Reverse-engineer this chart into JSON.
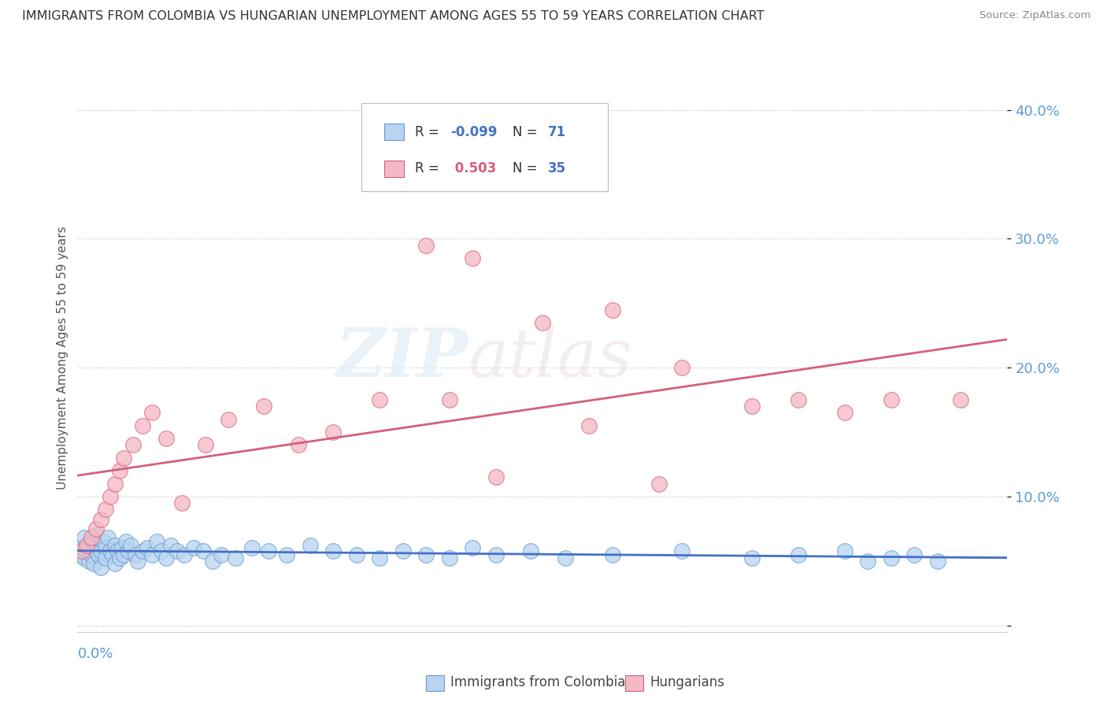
{
  "title": "IMMIGRANTS FROM COLOMBIA VS HUNGARIAN UNEMPLOYMENT AMONG AGES 55 TO 59 YEARS CORRELATION CHART",
  "source": "Source: ZipAtlas.com",
  "ylabel": "Unemployment Among Ages 55 to 59 years",
  "series": [
    {
      "label": "Immigrants from Colombia",
      "R": -0.099,
      "N": 71,
      "color": "#b8d4f0",
      "line_color": "#4472c4",
      "marker_edge": "#6699cc"
    },
    {
      "label": "Hungarians",
      "R": 0.503,
      "N": 35,
      "color": "#f4b8c4",
      "line_color": "#d4607a",
      "marker_edge": "#d4607a"
    }
  ],
  "blue_scatter_x": [
    0.001,
    0.002,
    0.003,
    0.003,
    0.004,
    0.005,
    0.005,
    0.006,
    0.006,
    0.007,
    0.007,
    0.008,
    0.008,
    0.009,
    0.009,
    0.01,
    0.01,
    0.011,
    0.012,
    0.012,
    0.013,
    0.014,
    0.015,
    0.016,
    0.016,
    0.017,
    0.018,
    0.019,
    0.02,
    0.021,
    0.022,
    0.023,
    0.025,
    0.026,
    0.028,
    0.03,
    0.032,
    0.034,
    0.036,
    0.038,
    0.04,
    0.043,
    0.046,
    0.05,
    0.054,
    0.058,
    0.062,
    0.068,
    0.075,
    0.082,
    0.09,
    0.1,
    0.11,
    0.12,
    0.13,
    0.14,
    0.15,
    0.16,
    0.17,
    0.18,
    0.195,
    0.21,
    0.23,
    0.26,
    0.29,
    0.31,
    0.33,
    0.34,
    0.35,
    0.36,
    0.37
  ],
  "blue_scatter_y": [
    0.055,
    0.06,
    0.052,
    0.068,
    0.058,
    0.062,
    0.05,
    0.065,
    0.055,
    0.06,
    0.048,
    0.058,
    0.07,
    0.055,
    0.062,
    0.058,
    0.045,
    0.065,
    0.06,
    0.052,
    0.068,
    0.058,
    0.055,
    0.062,
    0.048,
    0.058,
    0.052,
    0.06,
    0.055,
    0.065,
    0.058,
    0.062,
    0.055,
    0.05,
    0.058,
    0.06,
    0.055,
    0.065,
    0.058,
    0.052,
    0.062,
    0.058,
    0.055,
    0.06,
    0.058,
    0.05,
    0.055,
    0.052,
    0.06,
    0.058,
    0.055,
    0.062,
    0.058,
    0.055,
    0.052,
    0.058,
    0.055,
    0.052,
    0.06,
    0.055,
    0.058,
    0.052,
    0.055,
    0.058,
    0.052,
    0.055,
    0.058,
    0.05,
    0.052,
    0.055,
    0.05
  ],
  "pink_scatter_x": [
    0.002,
    0.004,
    0.006,
    0.008,
    0.01,
    0.012,
    0.014,
    0.016,
    0.018,
    0.02,
    0.024,
    0.028,
    0.032,
    0.038,
    0.045,
    0.055,
    0.065,
    0.08,
    0.095,
    0.11,
    0.13,
    0.15,
    0.17,
    0.2,
    0.23,
    0.26,
    0.29,
    0.31,
    0.33,
    0.35,
    0.16,
    0.18,
    0.22,
    0.25,
    0.38
  ],
  "pink_scatter_y": [
    0.058,
    0.062,
    0.068,
    0.075,
    0.082,
    0.09,
    0.1,
    0.11,
    0.12,
    0.13,
    0.14,
    0.155,
    0.165,
    0.145,
    0.095,
    0.14,
    0.16,
    0.17,
    0.14,
    0.15,
    0.175,
    0.295,
    0.285,
    0.235,
    0.245,
    0.2,
    0.17,
    0.175,
    0.165,
    0.175,
    0.175,
    0.115,
    0.155,
    0.11,
    0.175
  ],
  "xlim": [
    0.0,
    0.4
  ],
  "ylim": [
    -0.005,
    0.42
  ],
  "yticks": [
    0.0,
    0.1,
    0.2,
    0.3,
    0.4
  ],
  "ytick_labels": [
    "",
    "10.0%",
    "20.0%",
    "30.0%",
    "40.0%"
  ],
  "watermark_zip": "ZIP",
  "watermark_atlas": "atlas",
  "background_color": "#ffffff",
  "grid_color": "#dddddd",
  "title_color": "#333333",
  "axis_label_color": "#5b9bd5",
  "legend_r_color_blue": "#4472c4",
  "legend_r_color_pink": "#d4607a",
  "legend_n_color": "#4472c4",
  "legend_r_label_color": "#333333"
}
